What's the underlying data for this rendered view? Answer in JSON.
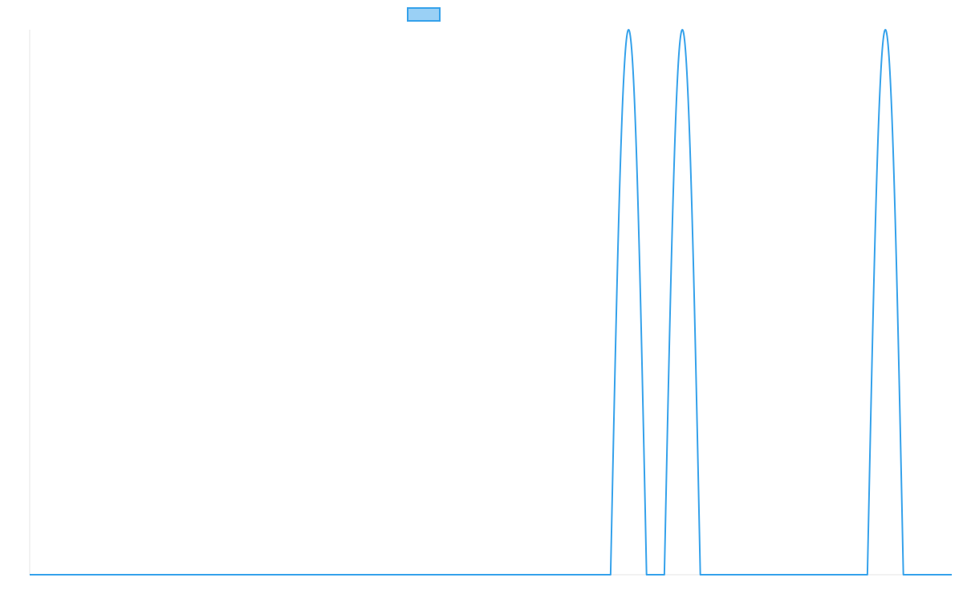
{
  "chart_data": {
    "type": "line",
    "title": "",
    "xlabel": "",
    "ylabel": "",
    "xlim": [
      0,
      1
    ],
    "ylim": [
      0,
      1
    ],
    "grid": false,
    "legend": {
      "position": "top-center",
      "entries": [
        {
          "label": "",
          "color": "#36A2EB",
          "fill": "#9AD0F5"
        }
      ]
    },
    "series": [
      {
        "color": "#36A2EB",
        "x": [
          0,
          0.63,
          0.6495,
          0.669,
          0.6883,
          0.7078,
          0.7273,
          0.9085,
          0.928,
          0.9475,
          1
        ],
        "values": [
          0,
          0,
          1,
          0,
          0,
          1,
          0,
          0,
          1,
          0,
          0
        ]
      }
    ]
  }
}
